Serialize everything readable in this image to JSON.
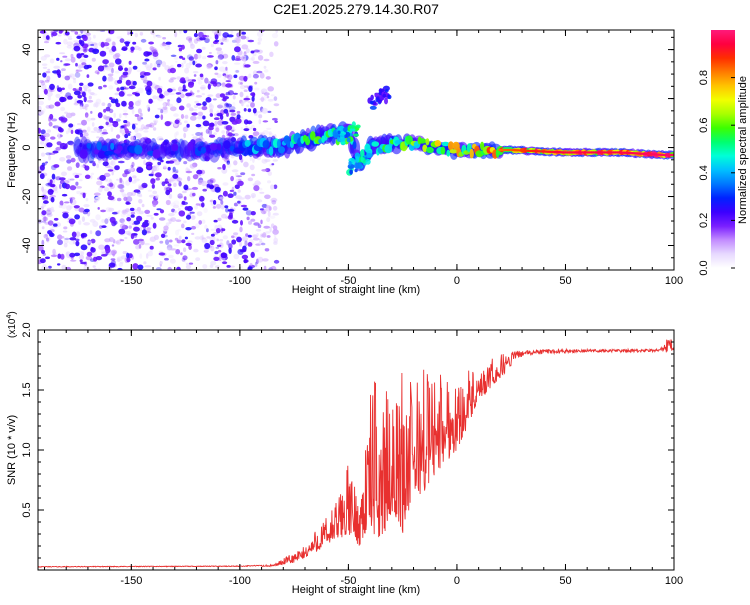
{
  "title": "C2E1.2025.279.14.30.R07",
  "colors": {
    "snr_line": "#e8302f",
    "axis": "#000000",
    "colorbar": [
      "#ffffff",
      "#e7d9ff",
      "#c28bff",
      "#7a1fff",
      "#3b00ff",
      "#0022ff",
      "#0077ff",
      "#00c0ff",
      "#00ffd8",
      "#00ff70",
      "#3cff00",
      "#a8ff00",
      "#f2ff00",
      "#ffc400",
      "#ff7a00",
      "#ff2e00",
      "#ff0040",
      "#ff1a7a"
    ]
  },
  "chart_data": [
    {
      "type": "heatmap",
      "name": "spectrogram",
      "title": "C2E1.2025.279.14.30.R07",
      "xlabel": "Height of straight line (km)",
      "ylabel": "Frequency (Hz)",
      "xlim": [
        -193,
        100
      ],
      "ylim": [
        -50,
        48
      ],
      "xticks": [
        -150,
        -100,
        -50,
        0,
        50,
        100
      ],
      "xtick_labels": [
        "-150",
        "-100",
        "-50",
        "0",
        "50",
        "100"
      ],
      "yticks": [
        -40,
        -20,
        0,
        20,
        40
      ],
      "ytick_labels": [
        "-40",
        "-20",
        "0",
        "20",
        "40"
      ],
      "noise_region_x": [
        -193,
        -85
      ],
      "ridge": [
        {
          "x": -170,
          "f": -1,
          "amp": 0.3
        },
        {
          "x": -160,
          "f": -1,
          "amp": 0.35
        },
        {
          "x": -150,
          "f": -1,
          "amp": 0.3
        },
        {
          "x": -140,
          "f": -1,
          "amp": 0.35
        },
        {
          "x": -130,
          "f": -1,
          "amp": 0.3
        },
        {
          "x": -120,
          "f": -1,
          "amp": 0.35
        },
        {
          "x": -110,
          "f": -1,
          "amp": 0.3
        },
        {
          "x": -100,
          "f": 0,
          "amp": 0.4
        },
        {
          "x": -90,
          "f": 0,
          "amp": 0.4
        },
        {
          "x": -80,
          "f": 1,
          "amp": 0.5
        },
        {
          "x": -70,
          "f": 3,
          "amp": 0.55
        },
        {
          "x": -60,
          "f": 5,
          "amp": 0.6
        },
        {
          "x": -50,
          "f": 6,
          "amp": 0.55
        },
        {
          "x": -45,
          "f": -6,
          "amp": 0.5
        },
        {
          "x": -40,
          "f": 0,
          "amp": 0.55
        },
        {
          "x": -36,
          "f": 20,
          "amp": 0.3
        },
        {
          "x": -30,
          "f": 1,
          "amp": 0.55
        },
        {
          "x": -20,
          "f": 2,
          "amp": 0.6
        },
        {
          "x": -10,
          "f": 0,
          "amp": 0.7
        },
        {
          "x": 0,
          "f": -1,
          "amp": 0.75
        },
        {
          "x": 10,
          "f": -1,
          "amp": 0.8
        },
        {
          "x": 25,
          "f": -1,
          "amp": 0.85
        },
        {
          "x": 50,
          "f": -2,
          "amp": 0.95
        },
        {
          "x": 75,
          "f": -2,
          "amp": 0.95
        },
        {
          "x": 95,
          "f": -3,
          "amp": 0.97
        }
      ]
    },
    {
      "type": "colorbar",
      "name": "amplitude-colorbar",
      "label": "Normalized spectral amplitude",
      "range": [
        0,
        1
      ],
      "ticks": [
        0.0,
        0.2,
        0.4,
        0.6,
        0.8
      ],
      "tick_labels": [
        "0.0",
        "0.2",
        "0.4",
        "0.6",
        "0.8"
      ]
    },
    {
      "type": "line",
      "name": "snr",
      "xlabel": "Height of straight line (km)",
      "ylabel": "SNR (10 * v/v)",
      "yscale_label": "(x10",
      "yscale_exponent": "4",
      "yscale_suffix": ")",
      "xlim": [
        -193,
        100
      ],
      "ylim": [
        0,
        20000
      ],
      "xticks": [
        -150,
        -100,
        -50,
        0,
        50,
        100
      ],
      "xtick_labels": [
        "-150",
        "-100",
        "-50",
        "0",
        "50",
        "100"
      ],
      "yticks": [
        5000,
        10000,
        15000,
        20000
      ],
      "ytick_labels": [
        "0.5",
        "1.0",
        "1.5",
        "2.0"
      ],
      "envelope": {
        "x": [
          -193,
          -100,
          -85,
          -75,
          -70,
          -65,
          -60,
          -55,
          -50,
          -45,
          -40,
          -35,
          -30,
          -25,
          -20,
          -15,
          -10,
          -5,
          0,
          5,
          10,
          15,
          20,
          25,
          30,
          40,
          50,
          60,
          70,
          80,
          90,
          95,
          98,
          100
        ],
        "base": [
          200,
          250,
          300,
          600,
          1000,
          1500,
          2000,
          2500,
          3000,
          2000,
          3500,
          2000,
          5000,
          3000,
          6000,
          6500,
          8000,
          9000,
          10000,
          12000,
          14000,
          15000,
          16000,
          17000,
          17500,
          17800,
          17900,
          18000,
          18000,
          18000,
          18000,
          18100,
          17000,
          18000
        ],
        "peak": [
          300,
          350,
          450,
          1500,
          2000,
          3500,
          4500,
          6000,
          9000,
          6000,
          15000,
          17000,
          13000,
          17500,
          15500,
          17500,
          16500,
          17000,
          15500,
          17000,
          16000,
          17500,
          18000,
          18200,
          18300,
          18400,
          18400,
          18400,
          18400,
          18400,
          18400,
          18600,
          19800,
          18600
        ]
      }
    }
  ]
}
